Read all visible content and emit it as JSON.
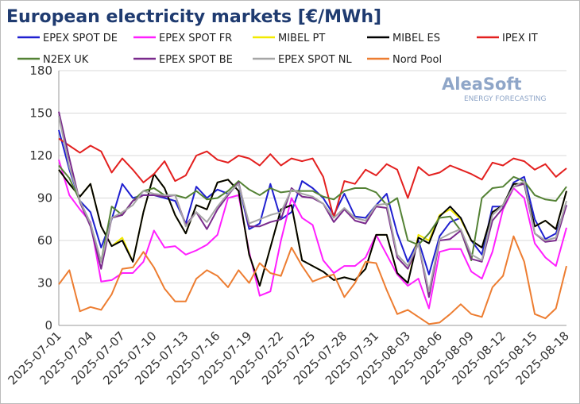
{
  "chart_data": {
    "type": "line",
    "title": "European electricity markets [€/MWh]",
    "watermark": {
      "name": "AleaSoft",
      "tagline": "ENERGY FORECASTING"
    },
    "categories": [
      "2025-07-01",
      null,
      null,
      "2025-07-04",
      null,
      null,
      "2025-07-07",
      null,
      null,
      "2025-07-10",
      null,
      null,
      "2025-07-13",
      null,
      null,
      "2025-07-16",
      null,
      null,
      "2025-07-19",
      null,
      null,
      "2025-07-22",
      null,
      null,
      "2025-07-25",
      null,
      null,
      "2025-07-28",
      null,
      null,
      "2025-07-31",
      null,
      null,
      "2025-08-03",
      null,
      null,
      "2025-08-06",
      null,
      null,
      "2025-08-09",
      null,
      null,
      "2025-08-12",
      null,
      null,
      "2025-08-15",
      null,
      null,
      "2025-08-18"
    ],
    "ylim": [
      0,
      180
    ],
    "yticks": [
      0,
      30,
      60,
      90,
      120,
      150,
      180
    ],
    "grid": true,
    "series": [
      {
        "name": "EPEX SPOT DE",
        "color": "#1f1fd0",
        "values": [
          138,
          110,
          88,
          80,
          55,
          75,
          100,
          90,
          92,
          92,
          90,
          88,
          72,
          98,
          90,
          96,
          93,
          100,
          68,
          72,
          100,
          75,
          80,
          102,
          97,
          90,
          78,
          93,
          77,
          76,
          85,
          93,
          65,
          45,
          60,
          36,
          63,
          73,
          76,
          60,
          50,
          84,
          84,
          101,
          105,
          75,
          61,
          65,
          85
        ]
      },
      {
        "name": "EPEX SPOT FR",
        "color": "#ff1fff",
        "values": [
          117,
          92,
          82,
          73,
          31,
          32,
          37,
          37,
          45,
          67,
          55,
          56,
          50,
          53,
          57,
          64,
          90,
          92,
          52,
          21,
          24,
          60,
          90,
          76,
          71,
          46,
          37,
          42,
          42,
          48,
          64,
          50,
          36,
          28,
          33,
          12,
          52,
          54,
          54,
          38,
          33,
          52,
          82,
          97,
          90,
          58,
          48,
          42,
          69
        ]
      },
      {
        "name": "MIBEL PT",
        "color": "#f2ea00",
        "values": [
          110,
          100,
          91,
          100,
          70,
          56,
          62,
          45,
          80,
          107,
          97,
          78,
          65,
          85,
          82,
          101,
          103,
          95,
          50,
          28,
          55,
          82,
          85,
          46,
          42,
          38,
          32,
          34,
          32,
          40,
          64,
          64,
          37,
          30,
          64,
          60,
          78,
          82,
          75,
          60,
          55,
          80,
          85,
          100,
          100,
          70,
          74,
          68,
          95
        ]
      },
      {
        "name": "MIBEL ES",
        "color": "#000000",
        "values": [
          110,
          100,
          91,
          100,
          70,
          56,
          60,
          45,
          80,
          107,
          97,
          78,
          65,
          85,
          82,
          101,
          103,
          95,
          50,
          28,
          55,
          82,
          85,
          46,
          42,
          38,
          32,
          34,
          32,
          40,
          64,
          64,
          37,
          30,
          62,
          58,
          77,
          84,
          76,
          60,
          55,
          80,
          85,
          100,
          100,
          70,
          74,
          68,
          95
        ]
      },
      {
        "name": "IPEX IT",
        "color": "#e3201f",
        "values": [
          132,
          127,
          122,
          127,
          123,
          108,
          118,
          110,
          101,
          107,
          116,
          102,
          106,
          120,
          123,
          117,
          115,
          120,
          118,
          113,
          121,
          113,
          118,
          116,
          118,
          105,
          76,
          102,
          100,
          110,
          106,
          114,
          110,
          90,
          112,
          106,
          108,
          113,
          110,
          107,
          103,
          115,
          113,
          118,
          116,
          110,
          114,
          105,
          111
        ]
      },
      {
        "name": "N2EX UK",
        "color": "#548235",
        "values": [
          113,
          104,
          88,
          72,
          45,
          84,
          78,
          88,
          95,
          97,
          92,
          92,
          90,
          95,
          89,
          90,
          95,
          102,
          96,
          92,
          97,
          94,
          95,
          95,
          95,
          91,
          89,
          95,
          97,
          97,
          94,
          85,
          90,
          60,
          57,
          65,
          76,
          77,
          67,
          46,
          90,
          97,
          98,
          105,
          102,
          92,
          89,
          88,
          98
        ]
      },
      {
        "name": "EPEX SPOT BE",
        "color": "#7a2a8c",
        "values": [
          151,
          118,
          87,
          70,
          40,
          76,
          78,
          88,
          92,
          92,
          91,
          92,
          71,
          80,
          68,
          82,
          92,
          101,
          70,
          70,
          73,
          75,
          97,
          91,
          90,
          86,
          73,
          82,
          74,
          72,
          84,
          83,
          48,
          40,
          58,
          20,
          60,
          61,
          67,
          47,
          45,
          74,
          83,
          98,
          100,
          65,
          59,
          60,
          85
        ]
      },
      {
        "name": "EPEX SPOT NL",
        "color": "#a6a6a6",
        "values": [
          148,
          112,
          88,
          72,
          45,
          76,
          80,
          85,
          95,
          93,
          92,
          92,
          70,
          80,
          73,
          84,
          93,
          100,
          72,
          75,
          78,
          80,
          96,
          93,
          91,
          86,
          76,
          83,
          76,
          74,
          85,
          86,
          50,
          42,
          58,
          24,
          61,
          65,
          68,
          50,
          46,
          78,
          85,
          98,
          102,
          65,
          60,
          62,
          88
        ]
      },
      {
        "name": "Nord Pool",
        "color": "#ed7d31",
        "values": [
          29,
          39,
          10,
          13,
          11,
          22,
          40,
          41,
          52,
          41,
          26,
          17,
          17,
          33,
          39,
          35,
          27,
          39,
          30,
          44,
          37,
          35,
          55,
          42,
          31,
          34,
          36,
          20,
          30,
          45,
          44,
          25,
          8,
          11,
          6,
          1,
          2,
          8,
          15,
          8,
          6,
          27,
          35,
          63,
          45,
          8,
          5,
          12,
          42
        ]
      }
    ]
  }
}
